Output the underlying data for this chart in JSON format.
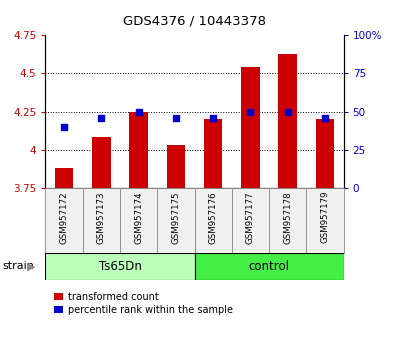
{
  "title": "GDS4376 / 10443378",
  "samples": [
    "GSM957172",
    "GSM957173",
    "GSM957174",
    "GSM957175",
    "GSM957176",
    "GSM957177",
    "GSM957178",
    "GSM957179"
  ],
  "red_values": [
    3.88,
    4.08,
    4.25,
    4.03,
    4.2,
    4.54,
    4.63,
    4.2
  ],
  "blue_values": [
    0.4,
    0.46,
    0.5,
    0.46,
    0.46,
    0.5,
    0.5,
    0.46
  ],
  "groups": [
    {
      "label": "Ts65Dn",
      "start": 0,
      "end": 3,
      "color": "#bbffbb"
    },
    {
      "label": "control",
      "start": 4,
      "end": 7,
      "color": "#44ee44"
    }
  ],
  "ylim_left": [
    3.75,
    4.75
  ],
  "ylim_right": [
    0.0,
    1.0
  ],
  "yticks_left": [
    3.75,
    4.0,
    4.25,
    4.5,
    4.75
  ],
  "ytick_labels_left": [
    "3.75",
    "4",
    "4.25",
    "4.5",
    "4.75"
  ],
  "yticks_right": [
    0.0,
    0.25,
    0.5,
    0.75,
    1.0
  ],
  "ytick_labels_right": [
    "0",
    "25",
    "50",
    "75",
    "100%"
  ],
  "grid_values": [
    4.0,
    4.25,
    4.5
  ],
  "bar_color": "#cc0000",
  "dot_color": "#0000cc",
  "strain_label": "strain",
  "legend_red": "transformed count",
  "legend_blue": "percentile rank within the sample",
  "bar_width": 0.5,
  "dot_size": 18,
  "bg_color": "#f0f0f0"
}
